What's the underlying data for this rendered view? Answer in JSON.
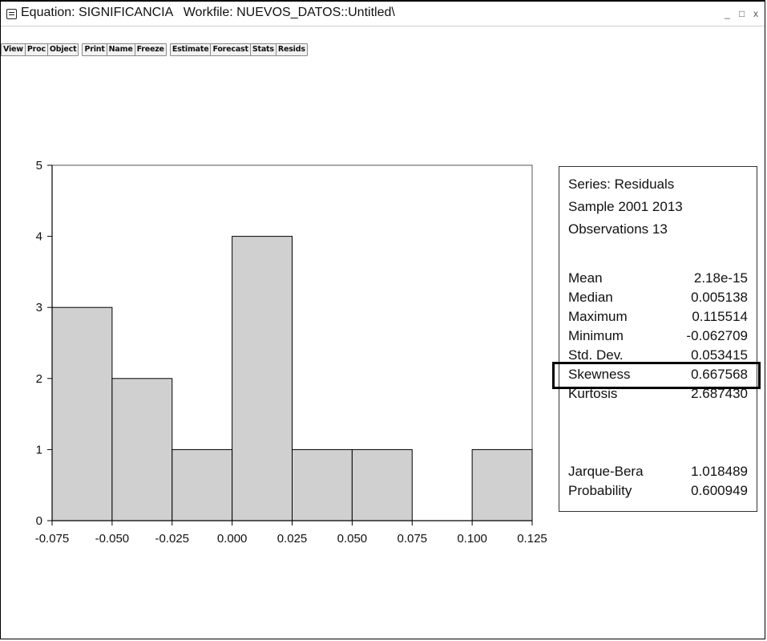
{
  "window": {
    "title": "Equation: SIGNIFICANCIA   Workfile: NUEVOS_DATOS::Untitled\\",
    "minimize_glyph": "_",
    "restore_glyph": "□",
    "close_glyph": "x",
    "icon": "equation-window-icon"
  },
  "toolbar": {
    "buttons": [
      "View",
      "Proc",
      "Object",
      "Print",
      "Name",
      "Freeze",
      "Estimate",
      "Forecast",
      "Stats",
      "Resids"
    ]
  },
  "stats": {
    "series_line": "Series: Residuals",
    "sample_line": "Sample 2001 2013",
    "obs_line": "Observations 13",
    "rows": [
      {
        "label": "Mean",
        "value": "2.18e-15"
      },
      {
        "label": "Median",
        "value": "0.005138"
      },
      {
        "label": "Maximum",
        "value": "0.115514"
      },
      {
        "label": "Minimum",
        "value": "-0.062709"
      },
      {
        "label": "Std. Dev.",
        "value": "0.053415"
      },
      {
        "label": "Skewness",
        "value": "0.667568"
      },
      {
        "label": "Kurtosis",
        "value": "2.687430"
      }
    ],
    "test_rows": [
      {
        "label": "Jarque-Bera",
        "value": "1.018489"
      },
      {
        "label": "Probability",
        "value": "0.600949"
      }
    ],
    "highlighted_row": "Std. Dev."
  },
  "chart_data": {
    "type": "bar",
    "title": "",
    "xlabel": "",
    "ylabel": "",
    "bins": [
      {
        "start": -0.075,
        "end": -0.05,
        "count": 3
      },
      {
        "start": -0.05,
        "end": -0.025,
        "count": 2
      },
      {
        "start": -0.025,
        "end": 0.0,
        "count": 1
      },
      {
        "start": 0.0,
        "end": 0.025,
        "count": 4
      },
      {
        "start": 0.025,
        "end": 0.05,
        "count": 1
      },
      {
        "start": 0.05,
        "end": 0.075,
        "count": 1
      },
      {
        "start": 0.075,
        "end": 0.1,
        "count": 0
      },
      {
        "start": 0.1,
        "end": 0.125,
        "count": 1
      }
    ],
    "xlim": [
      -0.075,
      0.125
    ],
    "ylim": [
      0,
      5
    ],
    "x_ticks": [
      "-0.075",
      "-0.050",
      "-0.025",
      "0.000",
      "0.025",
      "0.050",
      "0.075",
      "0.100",
      "0.125"
    ],
    "y_ticks": [
      "0",
      "1",
      "2",
      "3",
      "4",
      "5"
    ],
    "bar_color": "#d0d0d0",
    "grid": false
  }
}
